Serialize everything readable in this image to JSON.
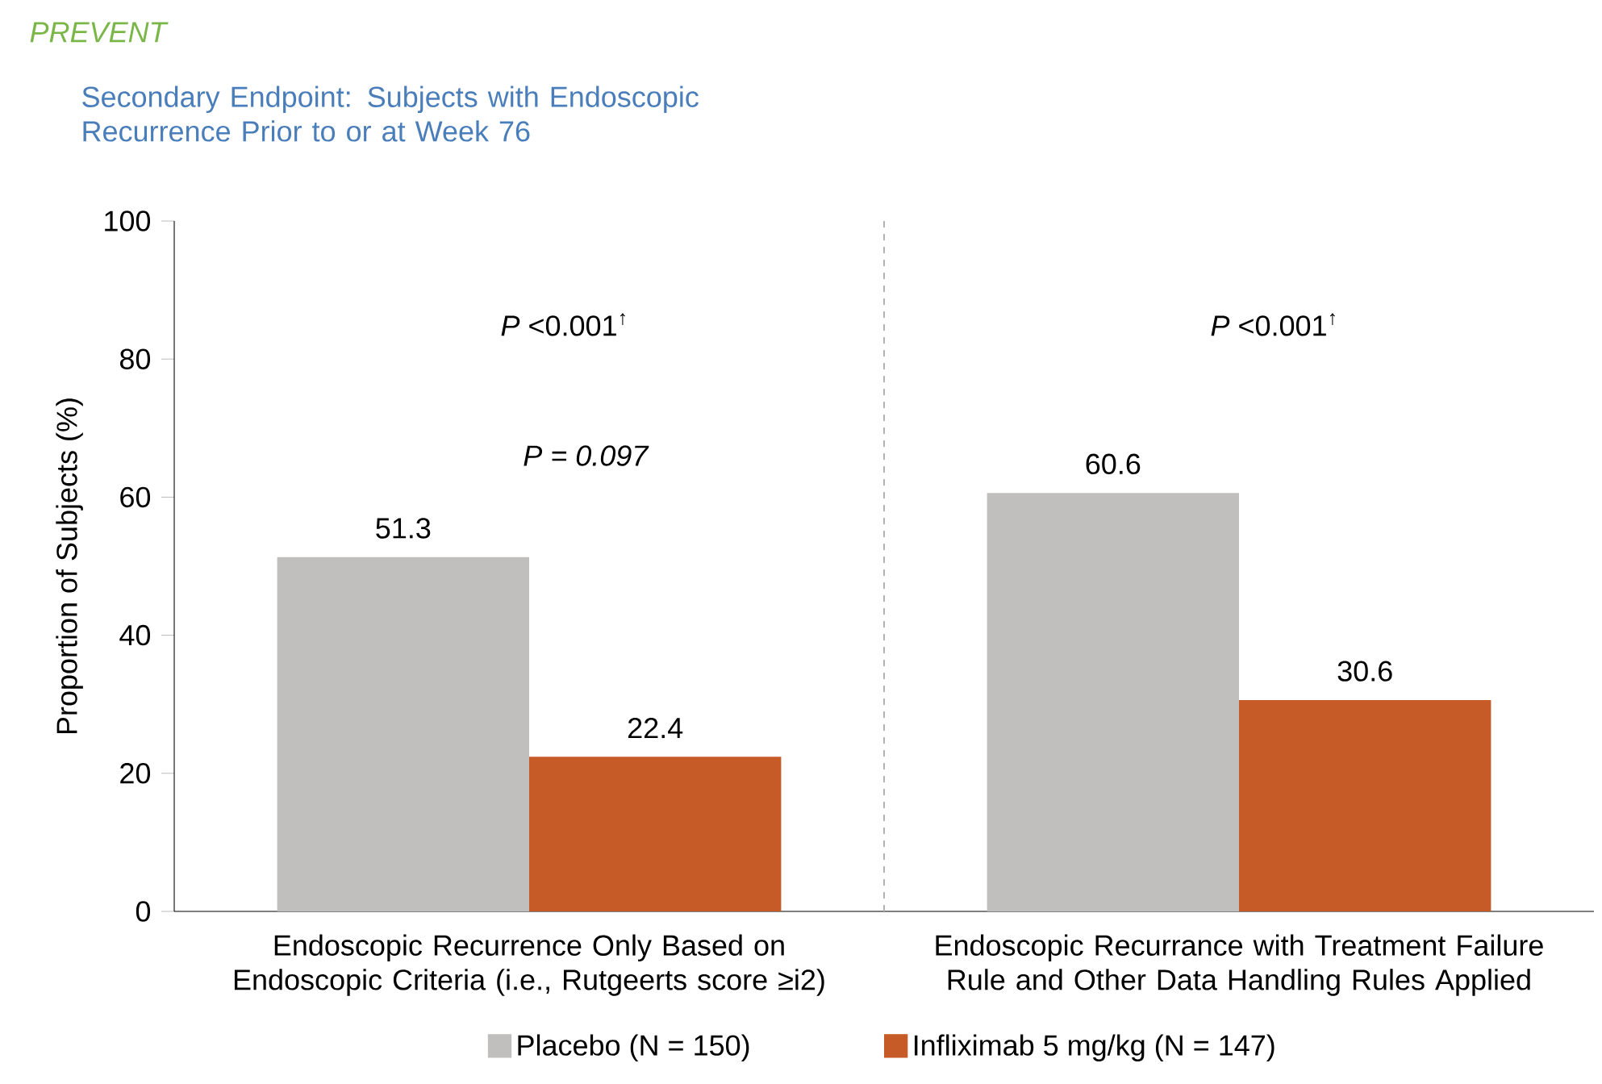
{
  "chart_data": {
    "type": "bar",
    "title": "*PREVENT*",
    "subtitle": "Secondary Endpoint: Subjects with Endoscopic Recurrence Prior to or at Week 76",
    "ylabel": "Proportion of Subjects (%)",
    "categories": [
      "Endoscopic Recurrence Only Based on Endoscopic Criteria (i.e., Rutgeerts score ≥i2)",
      "Endoscopic Recurrance with Treatment Failure Rule and Other Data Handling Rules Applied"
    ],
    "series": [
      {
        "name": "Placebo (N = 150)",
        "color": "#c0bfbd",
        "values": [
          51.3,
          60.6
        ]
      },
      {
        "name": "Infliximab 5 mg/kg (N = 147)",
        "color": "#c65b28",
        "values": [
          22.4,
          30.6
        ]
      }
    ],
    "ylim": [
      0,
      100
    ],
    "yticks": [
      0,
      20,
      40,
      60,
      80,
      100
    ],
    "data_labels": true,
    "legend": "bottom",
    "annotations": [
      "*P* <0.001$^{↑}$",
      "*P = 0.097*",
      "*P* <0.001$^{↑}$"
    ]
  }
}
